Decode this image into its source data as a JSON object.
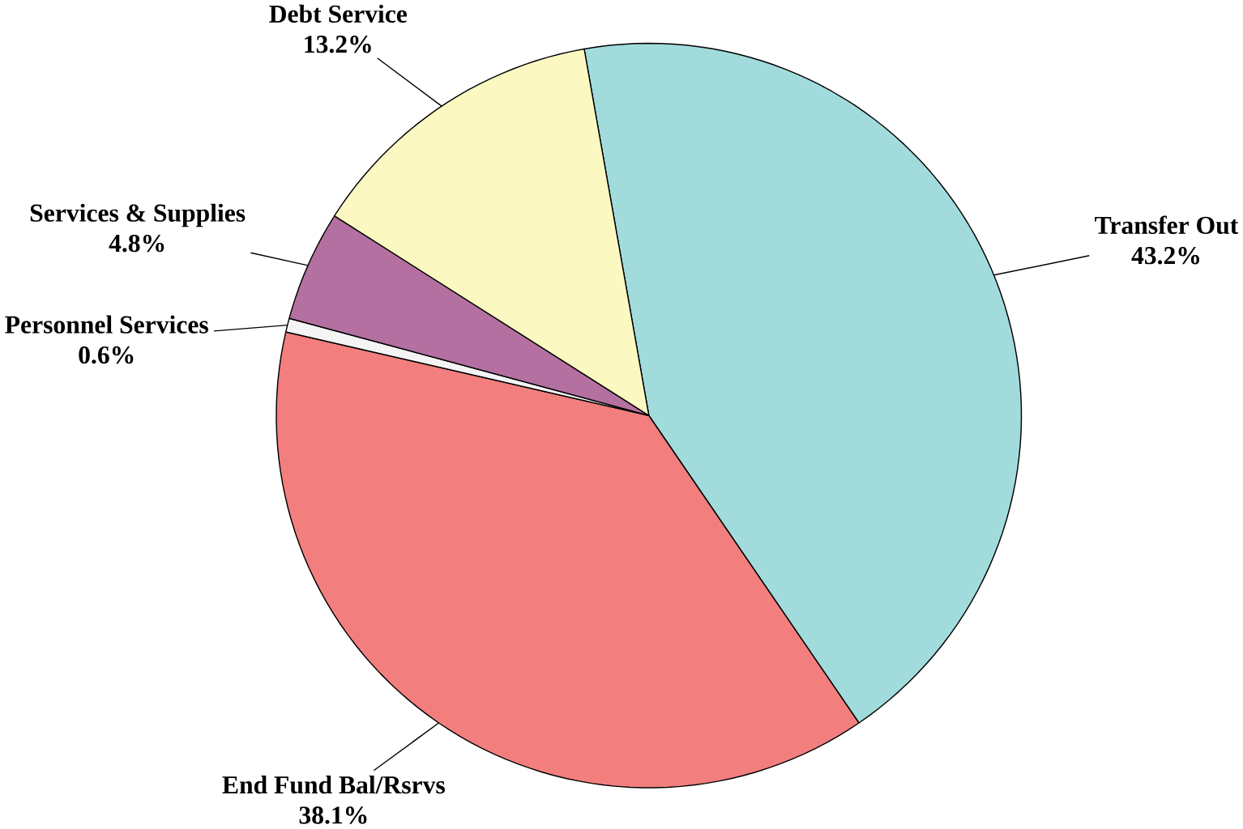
{
  "chart_data": {
    "type": "pie",
    "categories": [
      "Transfer Out",
      "End Fund Bal/Rsrvs",
      "Personnel Services",
      "Services & Supplies",
      "Debt Service"
    ],
    "values": [
      43.2,
      38.1,
      0.6,
      4.8,
      13.2
    ],
    "value_labels": [
      "43.2%",
      "38.1%",
      "0.6%",
      "4.8%",
      "13.2%"
    ],
    "colors": [
      "#a2dbdc",
      "#f27f7e",
      "#f4f4f4",
      "#b370a0",
      "#fbf8c2"
    ]
  }
}
